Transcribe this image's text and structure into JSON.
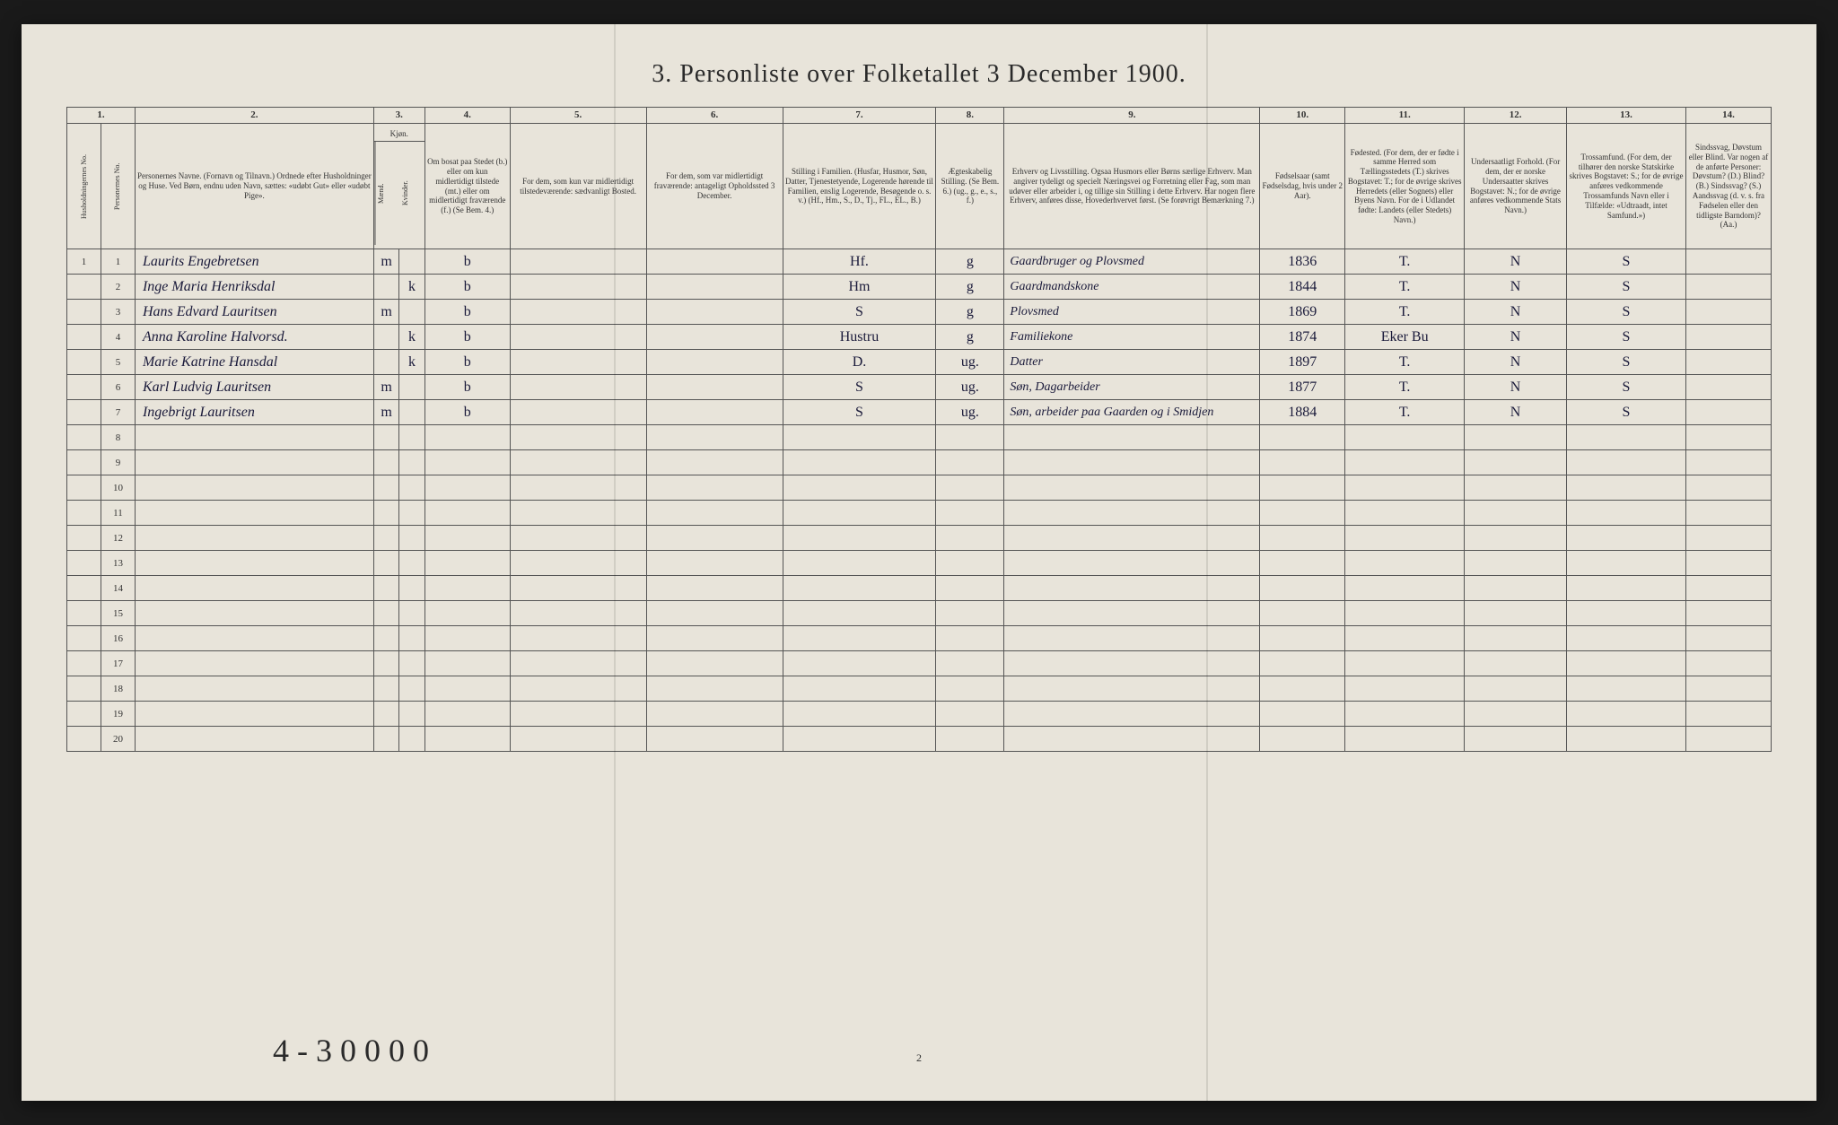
{
  "title": "3.  Personliste over Folketallet 3 December 1900.",
  "page_number": "2",
  "footnote": "4 - 3 0 0 0 0",
  "columns": {
    "numbers": [
      "1.",
      "2.",
      "3.",
      "4.",
      "5.",
      "6.",
      "7.",
      "8.",
      "9.",
      "10.",
      "11.",
      "12.",
      "13.",
      "14."
    ],
    "headers": {
      "h1a": "Husholdningernes No.",
      "h1b": "Personernes No.",
      "h2": "Personernes Navne.\n(Fornavn og Tilnavn.)\nOrdnede efter Husholdninger og Huse.\nVed Børn, endnu uden Navn, sættes: «udøbt Gut» eller «udøbt Pige».",
      "h3": "Kjøn.",
      "h3a": "Mænd.",
      "h3b": "Kvinder.",
      "h4": "Om bosat paa Stedet (b.) eller om kun midlertidigt tilstede (mt.) eller om midlertidigt fraværende (f.) (Se Bem. 4.)",
      "h5": "For dem, som kun var midlertidigt tilstedeværende:\nsædvanligt Bosted.",
      "h6": "For dem, som var midlertidigt fraværende:\nantageligt Opholdssted 3 December.",
      "h7": "Stilling i Familien.\n(Husfar, Husmor, Søn, Datter, Tjenestetyende, Logerende hørende til Familien, enslig Logerende, Besøgende o. s. v.)\n(Hf., Hm., S., D., Tj., FL., EL., B.)",
      "h8": "Ægteskabelig Stilling.\n(Se Bem. 6.)\n(ug., g., e., s., f.)",
      "h9": "Erhverv og Livsstilling.\nOgsaa Husmors eller Børns særlige Erhverv. Man angiver tydeligt og specielt Næringsvei og Forretning eller Fag, som man udøver eller arbeider i, og tillige sin Stilling i dette Erhverv. Har nogen flere Erhverv, anføres disse, Hovederhvervet først.\n(Se forøvrigt Bemærkning 7.)",
      "h10": "Fødselsaar\n(samt Fødselsdag, hvis under 2 Aar).",
      "h11": "Fødested.\n(For dem, der er fødte i samme Herred som Tællingsstedets (T.) skrives Bogstavet: T.; for de øvrige skrives Herredets (eller Sognets) eller Byens Navn. For de i Udlandet fødte: Landets (eller Stedets) Navn.)",
      "h12": "Undersaatligt Forhold.\n(For dem, der er norske Undersaatter skrives Bogstavet: N.; for de øvrige anføres vedkommende Stats Navn.)",
      "h13": "Trossamfund.\n(For dem, der tilhører den norske Statskirke skrives Bogstavet: S.; for de øvrige anføres vedkommende Trossamfunds Navn eller i Tilfælde: «Udtraadt, intet Samfund.»)",
      "h14": "Sindssvag, Døvstum eller Blind.\nVar nogen af de anførte Personer:\nDøvstum? (D.)\nBlind? (B.)\nSindssvag? (S.)\nAandssvag (d. v. s. fra Fødselen eller den tidligste Barndom)? (Aa.)"
    }
  },
  "rows": [
    {
      "hh": "1",
      "pn": "1",
      "name": "Laurits Engebretsen",
      "m": "m",
      "k": "",
      "res": "b",
      "c5": "",
      "c6": "",
      "fam": "Hf.",
      "mar": "g",
      "occ": "Gaardbruger og Plovsmed",
      "year": "1836",
      "place": "T.",
      "nat": "N",
      "rel": "S",
      "c14": ""
    },
    {
      "hh": "",
      "pn": "2",
      "name": "Inge Maria Henriksdal",
      "m": "",
      "k": "k",
      "res": "b",
      "c5": "",
      "c6": "",
      "fam": "Hm",
      "mar": "g",
      "occ": "Gaardmandskone",
      "year": "1844",
      "place": "T.",
      "nat": "N",
      "rel": "S",
      "c14": ""
    },
    {
      "hh": "",
      "pn": "3",
      "name": "Hans Edvard Lauritsen",
      "m": "m",
      "k": "",
      "res": "b",
      "c5": "",
      "c6": "",
      "fam": "S",
      "mar": "g",
      "occ": "Plovsmed",
      "year": "1869",
      "place": "T.",
      "nat": "N",
      "rel": "S",
      "c14": ""
    },
    {
      "hh": "",
      "pn": "4",
      "name": "Anna Karoline Halvorsd.",
      "m": "",
      "k": "k",
      "res": "b",
      "c5": "",
      "c6": "",
      "fam": "Hustru",
      "mar": "g",
      "occ": "Familiekone",
      "year": "1874",
      "place": "Eker Bu",
      "nat": "N",
      "rel": "S",
      "c14": ""
    },
    {
      "hh": "",
      "pn": "5",
      "name": "Marie Katrine Hansdal",
      "m": "",
      "k": "k",
      "res": "b",
      "c5": "",
      "c6": "",
      "fam": "D.",
      "mar": "ug.",
      "occ": "Datter",
      "year": "1897",
      "place": "T.",
      "nat": "N",
      "rel": "S",
      "c14": ""
    },
    {
      "hh": "",
      "pn": "6",
      "name": "Karl Ludvig Lauritsen",
      "m": "m",
      "k": "",
      "res": "b",
      "c5": "",
      "c6": "",
      "fam": "S",
      "mar": "ug.",
      "occ": "Søn, Dagarbeider",
      "year": "1877",
      "place": "T.",
      "nat": "N",
      "rel": "S",
      "c14": ""
    },
    {
      "hh": "",
      "pn": "7",
      "name": "Ingebrigt Lauritsen",
      "m": "m",
      "k": "",
      "res": "b",
      "c5": "",
      "c6": "",
      "fam": "S",
      "mar": "ug.",
      "occ": "Søn, arbeider paa Gaarden og i Smidjen",
      "year": "1884",
      "place": "T.",
      "nat": "N",
      "rel": "S",
      "c14": ""
    }
  ],
  "empty_rows": [
    8,
    9,
    10,
    11,
    12,
    13,
    14,
    15,
    16,
    17,
    18,
    19,
    20
  ]
}
